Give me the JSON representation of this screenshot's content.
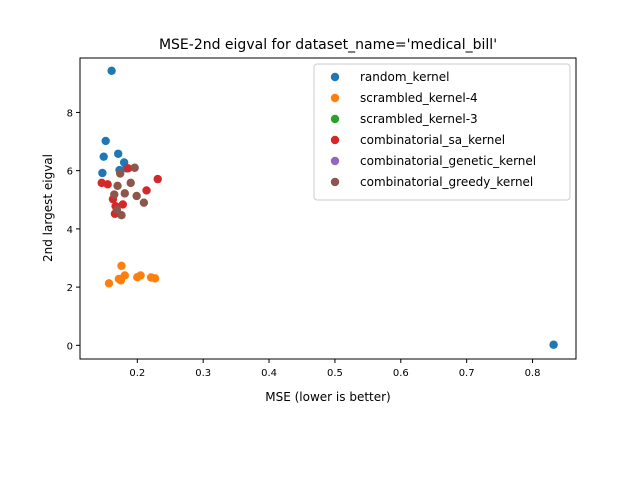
{
  "chart_data": {
    "type": "scatter",
    "title": "MSE-2nd eigval for dataset_name='medical_bill'",
    "xlabel": "MSE (lower is better)",
    "ylabel": "2nd largest eigval",
    "xlim": [
      0.113,
      0.866
    ],
    "ylim": [
      -0.47,
      9.87
    ],
    "xticks": [
      0.1,
      0.2,
      0.3,
      0.4,
      0.5,
      0.6,
      0.7,
      0.8
    ],
    "xtick_labels": [
      "0.1",
      "0.2",
      "0.3",
      "0.4",
      "0.5",
      "0.6",
      "0.7",
      "0.8"
    ],
    "yticks": [
      0,
      2,
      4,
      6,
      8
    ],
    "ytick_labels": [
      "0",
      "2",
      "4",
      "6",
      "8"
    ],
    "grid": false,
    "legend_position": "top-right",
    "series": [
      {
        "name": "random_kernel",
        "color": "#1f77b4",
        "x": [
          0.161,
          0.152,
          0.149,
          0.171,
          0.147,
          0.18,
          0.183,
          0.173,
          0.832
        ],
        "y": [
          9.43,
          7.02,
          6.48,
          6.58,
          5.92,
          6.28,
          6.08,
          6.02,
          0.02
        ]
      },
      {
        "name": "scrambled_kernel-4",
        "color": "#ff7f0e",
        "x": [
          0.157,
          0.176,
          0.172,
          0.175,
          0.181,
          0.2,
          0.205,
          0.221,
          0.227
        ],
        "y": [
          2.13,
          2.73,
          2.28,
          2.23,
          2.4,
          2.34,
          2.4,
          2.33,
          2.3
        ]
      },
      {
        "name": "scrambled_kernel-3",
        "color": "#2ca02c",
        "x": [],
        "y": []
      },
      {
        "name": "combinatorial_sa_kernel",
        "color": "#d62728",
        "x": [
          0.146,
          0.155,
          0.163,
          0.167,
          0.166,
          0.178,
          0.186,
          0.214,
          0.231
        ],
        "y": [
          5.58,
          5.53,
          5.02,
          4.78,
          4.52,
          4.84,
          6.08,
          5.32,
          5.71
        ]
      },
      {
        "name": "combinatorial_genetic_kernel",
        "color": "#9467bd",
        "x": [],
        "y": []
      },
      {
        "name": "combinatorial_greedy_kernel",
        "color": "#8c564b",
        "x": [
          0.174,
          0.196,
          0.17,
          0.19,
          0.181,
          0.199,
          0.165,
          0.21,
          0.169,
          0.176
        ],
        "y": [
          5.9,
          6.1,
          5.48,
          5.58,
          5.22,
          5.13,
          5.18,
          4.9,
          4.65,
          4.47
        ]
      }
    ]
  }
}
